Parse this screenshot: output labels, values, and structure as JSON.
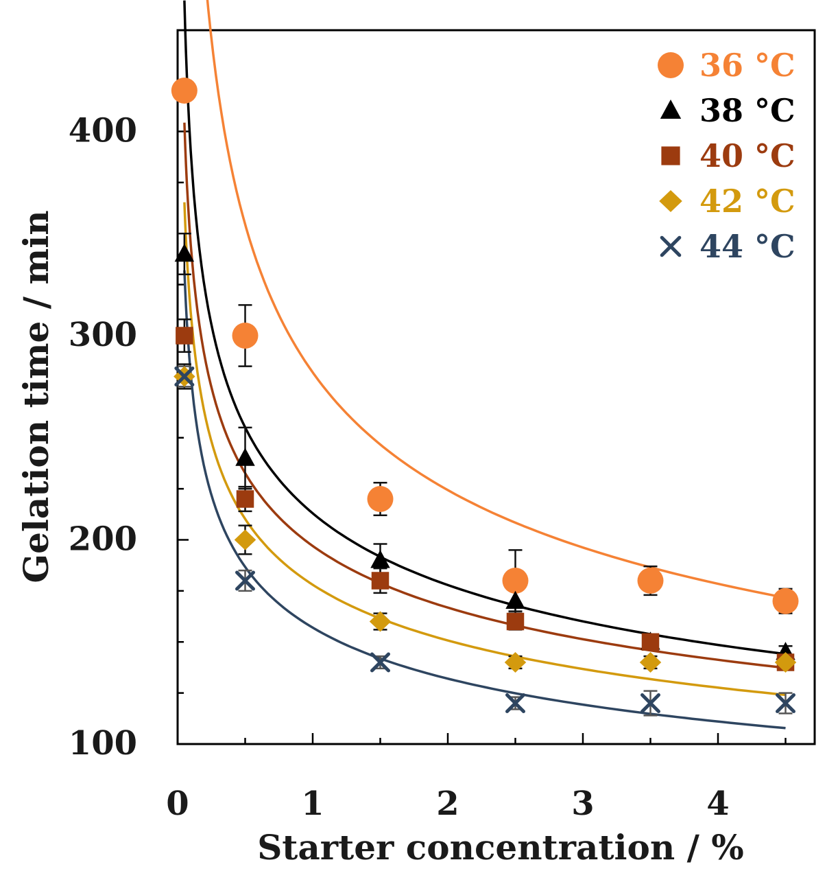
{
  "chart_data": {
    "type": "scatter",
    "xlabel": "Starter concentration / %",
    "ylabel": "Gelation time / min",
    "xlim": [
      0,
      4.7
    ],
    "ylim": [
      100,
      450
    ],
    "x_ticks": [
      "0",
      "1",
      "2",
      "3",
      "4"
    ],
    "y_ticks": [
      "100",
      "200",
      "300",
      "400"
    ],
    "legend_position": "top-right",
    "series": [
      {
        "name": "36 °C",
        "marker": "circle",
        "color": "#f58235",
        "x": [
          0.05,
          0.5,
          1.5,
          2.5,
          3.5,
          4.5
        ],
        "y": [
          420,
          300,
          220,
          180,
          180,
          170
        ],
        "error": [
          0,
          15,
          8,
          15,
          7,
          6
        ],
        "fit": {
          "a": 282,
          "b": -0.33
        }
      },
      {
        "name": "38 °C",
        "marker": "triangle",
        "color": "#000000",
        "x": [
          0.05,
          0.5,
          1.5,
          2.5,
          3.5,
          4.5
        ],
        "y": [
          340,
          240,
          190,
          170,
          150,
          145
        ],
        "error": [
          10,
          15,
          8,
          7,
          3,
          3
        ],
        "fit": {
          "a": 213,
          "b": -0.26
        }
      },
      {
        "name": "40 °C",
        "marker": "square",
        "color": "#9c3b0f",
        "x": [
          0.05,
          0.5,
          1.5,
          2.5,
          3.5,
          4.5
        ],
        "y": [
          300,
          220,
          180,
          160,
          150,
          140
        ],
        "error": [
          8,
          6,
          6,
          4,
          3,
          3
        ],
        "fit": {
          "a": 197,
          "b": -0.24
        }
      },
      {
        "name": "42 °C",
        "marker": "diamond",
        "color": "#d39a0e",
        "x": [
          0.05,
          0.5,
          1.5,
          2.5,
          3.5,
          4.5
        ],
        "y": [
          280,
          200,
          160,
          140,
          140,
          140
        ],
        "error": [
          6,
          7,
          4,
          3,
          3,
          3
        ],
        "fit": {
          "a": 178,
          "b": -0.24
        }
      },
      {
        "name": "44 °C",
        "marker": "cross",
        "color": "#2e4560",
        "x": [
          0.05,
          0.5,
          1.5,
          2.5,
          3.5,
          4.5
        ],
        "y": [
          280,
          180,
          140,
          120,
          120,
          120
        ],
        "error": [
          5,
          5,
          3,
          3,
          6,
          5
        ],
        "fit": {
          "a": 157,
          "b": -0.25
        }
      }
    ]
  }
}
